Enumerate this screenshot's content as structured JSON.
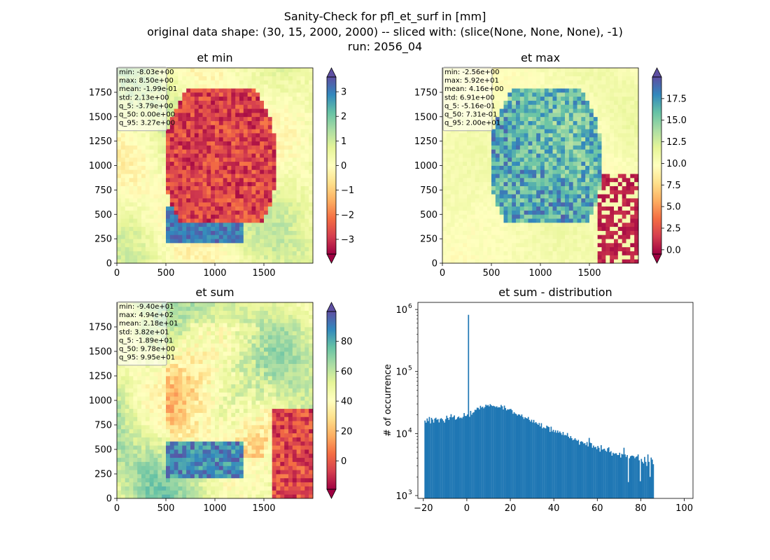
{
  "figure": {
    "suptitle_lines": [
      "Sanity-Check for pfl_et_surf in [mm]",
      "original data shape: (30, 15, 2000, 2000) -- sliced with: (slice(None, None, None), -1)",
      "run: 2056_04"
    ]
  },
  "chart_data": [
    {
      "type": "heatmap",
      "title": "et min",
      "xlabel": "",
      "ylabel": "",
      "xlim": [
        0,
        2000
      ],
      "ylim": [
        0,
        2000
      ],
      "x_ticks": [
        0,
        500,
        1000,
        1500
      ],
      "y_ticks": [
        0,
        250,
        500,
        750,
        1000,
        1250,
        1500,
        1750
      ],
      "colormap": "Spectral",
      "colorbar": {
        "range": [
          -3.6,
          3.6
        ],
        "ticks": [
          -3,
          -2,
          -1,
          0,
          1,
          2,
          3
        ],
        "tick_labels": [
          "−3",
          "−2",
          "−1",
          "0",
          "1",
          "2",
          "3"
        ],
        "extend": "both"
      },
      "stats": [
        "min: -8.03e+00",
        "max: 8.50e+00",
        "mean: -1.99e-01",
        "std: 2.13e+00",
        "q_5: -3.79e+00",
        "q_50: 0.00e+00",
        "q_95: 3.27e+00"
      ],
      "grid": false
    },
    {
      "type": "heatmap",
      "title": "et max",
      "xlabel": "",
      "ylabel": "",
      "xlim": [
        0,
        2000
      ],
      "ylim": [
        0,
        2000
      ],
      "x_ticks": [
        0,
        500,
        1000,
        1500
      ],
      "y_ticks": [
        0,
        250,
        500,
        750,
        1000,
        1250,
        1500,
        1750
      ],
      "colormap": "Spectral",
      "colorbar": {
        "range": [
          -0.5,
          20
        ],
        "ticks": [
          0,
          2.5,
          5,
          7.5,
          10,
          12.5,
          15,
          17.5
        ],
        "tick_labels": [
          "0.0",
          "2.5",
          "5.0",
          "7.5",
          "10.0",
          "12.5",
          "15.0",
          "17.5"
        ],
        "extend": "both"
      },
      "stats": [
        "min: -2.56e+00",
        "max: 5.92e+01",
        "mean: 4.16e+00",
        "std: 6.91e+00",
        "q_5: -5.16e-01",
        "q_50: 7.31e-01",
        "q_95: 2.00e+01"
      ],
      "grid": false
    },
    {
      "type": "heatmap",
      "title": "et sum",
      "xlabel": "",
      "ylabel": "",
      "xlim": [
        0,
        2000
      ],
      "ylim": [
        0,
        2000
      ],
      "x_ticks": [
        0,
        500,
        1000,
        1500
      ],
      "y_ticks": [
        0,
        250,
        500,
        750,
        1000,
        1250,
        1500,
        1750
      ],
      "colormap": "Spectral",
      "colorbar": {
        "range": [
          -19,
          100
        ],
        "ticks": [
          0,
          20,
          40,
          60,
          80
        ],
        "tick_labels": [
          "0",
          "20",
          "40",
          "60",
          "80"
        ],
        "extend": "both"
      },
      "stats": [
        "min: -9.40e+01",
        "max: 4.94e+02",
        "mean: 2.18e+01",
        "std: 3.82e+01",
        "q_5: -1.89e+01",
        "q_50: 9.78e+00",
        "q_95: 9.95e+01"
      ],
      "grid": false
    },
    {
      "type": "bar",
      "title": "et sum - distribution",
      "xlabel": "",
      "ylabel": "# of occurrence",
      "xlim": [
        -22.5,
        104
      ],
      "ylim": [
        900,
        1300000
      ],
      "yscale": "log",
      "bar_color": "#1f77b4",
      "x_ticks": [
        -20,
        0,
        20,
        40,
        60,
        80,
        100
      ],
      "x_tick_labels": [
        "−20",
        "0",
        "20",
        "40",
        "60",
        "80",
        "100"
      ],
      "y_ticks": [
        1000,
        10000,
        100000,
        1000000
      ],
      "y_tick_exponents": [
        "3",
        "4",
        "5",
        "6"
      ],
      "bin_width": 0.5,
      "bins_start": -19.5,
      "values": [
        16200,
        15000,
        17500,
        15900,
        18500,
        14600,
        17900,
        16800,
        15000,
        17400,
        18000,
        16700,
        17100,
        15100,
        17200,
        17700,
        17000,
        16000,
        15000,
        17100,
        19400,
        17900,
        16600,
        18400,
        20500,
        18200,
        18600,
        19600,
        16700,
        17100,
        18200,
        18800,
        17700,
        18100,
        17600,
        18600,
        21400,
        19200,
        19200,
        20300,
        820000,
        18600,
        23200,
        20100,
        21600,
        22100,
        24100,
        24100,
        26100,
        25900,
        24500,
        28000,
        26200,
        27100,
        25500,
        26800,
        29200,
        28200,
        28900,
        27400,
        29800,
        28500,
        27700,
        28000,
        27500,
        26700,
        27500,
        26200,
        26700,
        26300,
        28900,
        27500,
        24400,
        28200,
        25800,
        23600,
        24600,
        24300,
        24800,
        24900,
        23800,
        20800,
        22100,
        21000,
        20600,
        19500,
        20400,
        20200,
        19200,
        20300,
        18500,
        17200,
        18300,
        17800,
        17400,
        18500,
        16600,
        15600,
        16700,
        15100,
        16600,
        14800,
        15300,
        14500,
        13800,
        14800,
        13000,
        14700,
        12100,
        12600,
        12300,
        12100,
        13400,
        13000,
        12700,
        10600,
        12900,
        10800,
        11500,
        10500,
        11300,
        10300,
        11200,
        10300,
        10800,
        10200,
        9500,
        10600,
        9400,
        9500,
        9300,
        10200,
        8900,
        8400,
        9100,
        8400,
        7800,
        8000,
        8400,
        7900,
        7600,
        7900,
        6600,
        7400,
        7500,
        7300,
        6900,
        7000,
        6500,
        7300,
        6200,
        8500,
        7100,
        7000,
        5900,
        6400,
        6000,
        6100,
        5600,
        6300,
        5900,
        5100,
        6500,
        5500,
        5600,
        5700,
        5300,
        5100,
        5800,
        6000,
        5000,
        5200,
        4400,
        4900,
        4700,
        4800,
        4800,
        4500,
        4500,
        4900,
        4100,
        4700,
        4600,
        5900,
        4600,
        4200,
        4500,
        1650,
        4000,
        4300,
        4400,
        4400,
        4300,
        4000,
        4200,
        4300,
        4600,
        3700,
        1700,
        3900,
        3500,
        3300,
        4200,
        3500,
        3000,
        4600,
        3500,
        2000,
        4100,
        3800,
        3200
      ]
    }
  ]
}
